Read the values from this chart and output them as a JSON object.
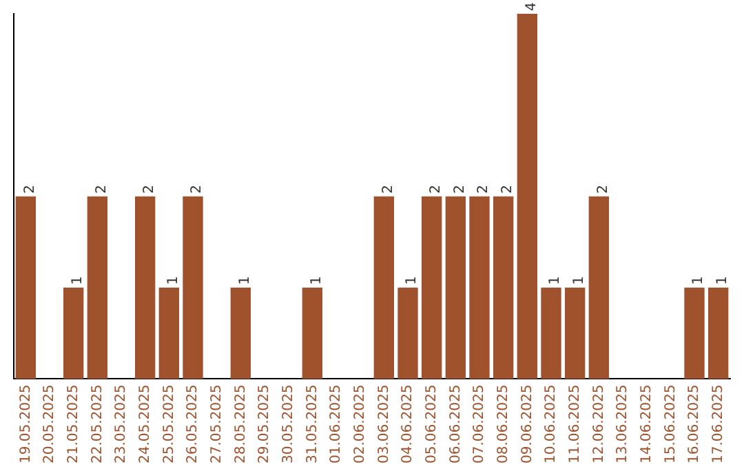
{
  "chart_data": {
    "type": "bar",
    "categories": [
      "19.05.2025",
      "20.05.2025",
      "21.05.2025",
      "22.05.2025",
      "23.05.2025",
      "24.05.2025",
      "25.05.2025",
      "26.05.2025",
      "27.05.2025",
      "28.05.2025",
      "29.05.2025",
      "30.05.2025",
      "31.05.2025",
      "01.06.2025",
      "02.06.2025",
      "03.06.2025",
      "04.06.2025",
      "05.06.2025",
      "06.06.2025",
      "07.06.2025",
      "08.06.2025",
      "09.06.2025",
      "10.06.2025",
      "11.06.2025",
      "12.06.2025",
      "13.06.2025",
      "14.06.2025",
      "15.06.2025",
      "16.06.2025",
      "17.06.2025"
    ],
    "values": [
      2,
      0,
      1,
      2,
      0,
      2,
      1,
      2,
      0,
      1,
      0,
      0,
      1,
      0,
      0,
      2,
      1,
      2,
      2,
      2,
      2,
      4,
      1,
      1,
      2,
      0,
      0,
      0,
      1,
      1
    ],
    "value_labels": [
      "2",
      null,
      "1",
      "2",
      null,
      "2",
      "1",
      "2",
      null,
      "1",
      null,
      null,
      "1",
      null,
      null,
      "2",
      "1",
      "2",
      "2",
      "2",
      "2",
      "4",
      "1",
      "1",
      "2",
      null,
      null,
      null,
      "1",
      "1"
    ],
    "color": "#a0522d",
    "ylim": [
      0,
      4
    ],
    "tick_labels": "x",
    "grid": false,
    "legend": false
  }
}
